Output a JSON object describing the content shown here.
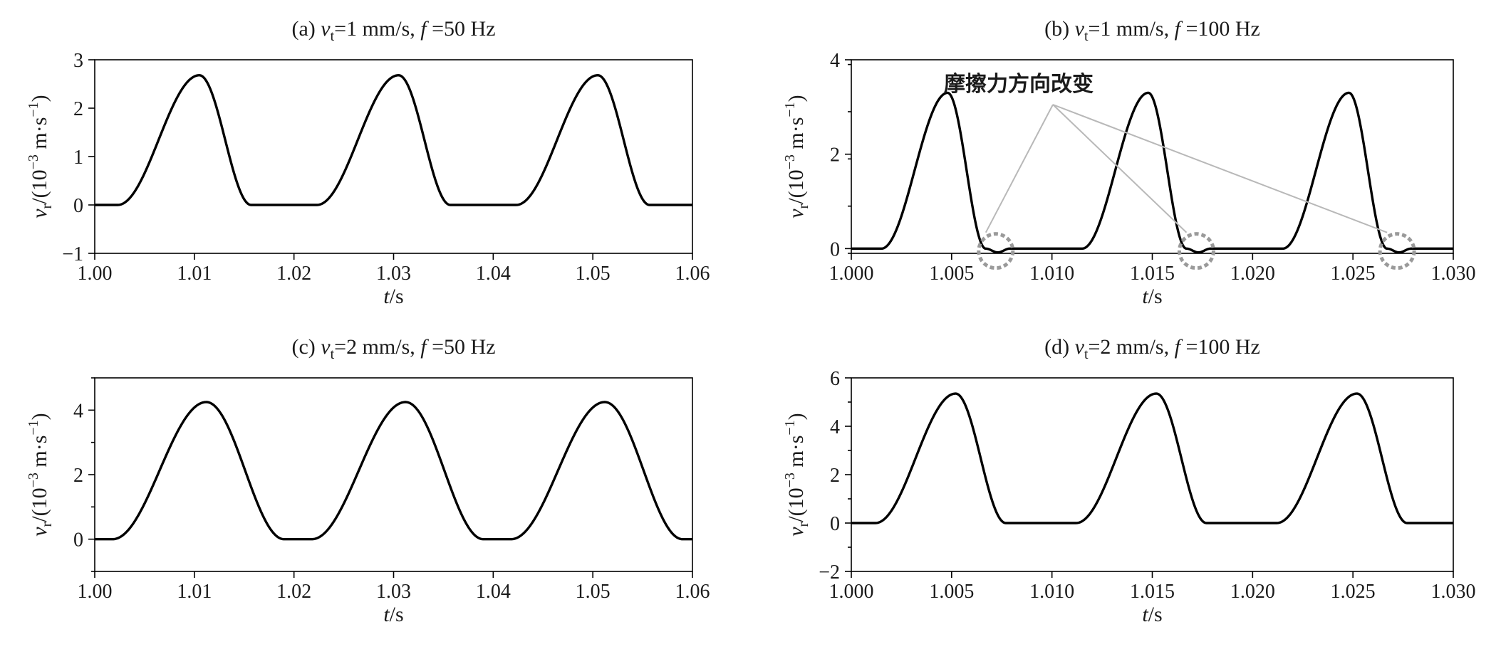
{
  "chart_data": [
    {
      "id": "a",
      "type": "line",
      "title": {
        "prefix": "(a) ",
        "var": "v",
        "sub": "t",
        "mid": "=1 mm/s, ",
        "fvar": "f",
        "suffix": " =50 Hz"
      },
      "xlabel": {
        "var": "t",
        "unit": "/s"
      },
      "ylabel": {
        "var": "v",
        "sub": "r",
        "unit_pre": "/(10",
        "exp": "−3",
        "unit_mid": " m·s",
        "exp2": "−1",
        "unit_post": ")"
      },
      "xlim": [
        1.0,
        1.06
      ],
      "ylim": [
        -1,
        3
      ],
      "xticks": [
        1.0,
        1.01,
        1.02,
        1.03,
        1.04,
        1.05,
        1.06
      ],
      "xtick_labels": [
        "1.00",
        "1.01",
        "1.02",
        "1.03",
        "1.04",
        "1.05",
        "1.06"
      ],
      "yticks": [
        -1,
        0,
        1,
        2,
        3
      ],
      "ytick_labels": [
        "−1",
        "0",
        "1",
        "2",
        "3"
      ],
      "grid": false,
      "series": [
        {
          "period": 0.02,
          "segments": [
            [
              1.0,
              0.0
            ],
            [
              1.0023,
              0.0
            ],
            [
              1.0105,
              2.68
            ],
            [
              1.0157,
              0.0
            ],
            [
              1.02,
              0.0
            ]
          ]
        }
      ]
    },
    {
      "id": "b",
      "type": "line",
      "title": {
        "prefix": "(b) ",
        "var": "v",
        "sub": "t",
        "mid": "=1 mm/s, ",
        "fvar": "f",
        "suffix": " =100 Hz"
      },
      "xlabel": {
        "var": "t",
        "unit": "/s"
      },
      "ylabel": {
        "var": "v",
        "sub": "r",
        "unit_pre": "/(10",
        "exp": "−3",
        "unit_mid": " m·s",
        "exp2": "−1",
        "unit_post": ")"
      },
      "xlim": [
        1.0,
        1.03
      ],
      "ylim": [
        -0.1,
        4
      ],
      "xticks": [
        1.0,
        1.005,
        1.01,
        1.015,
        1.02,
        1.025,
        1.03
      ],
      "xtick_labels": [
        "1.000",
        "1.005",
        "1.010",
        "1.015",
        "1.020",
        "1.025",
        "1.030"
      ],
      "yticks": [
        0,
        2,
        4
      ],
      "ytick_labels": [
        "0",
        "2",
        "4"
      ],
      "grid": false,
      "annotation": {
        "text": "摩擦力方向改变",
        "targets_x": [
          1.0072,
          1.0172,
          1.0272
        ],
        "target_y": -0.05
      },
      "series": [
        {
          "period": 0.01,
          "segments": [
            [
              1.0,
              0.0
            ],
            [
              1.0015,
              0.0
            ],
            [
              1.0048,
              3.3
            ],
            [
              1.0067,
              0.0
            ],
            [
              1.0073,
              -0.08
            ],
            [
              1.0079,
              0.0
            ],
            [
              1.01,
              0.0
            ]
          ]
        }
      ]
    },
    {
      "id": "c",
      "type": "line",
      "title": {
        "prefix": "(c) ",
        "var": "v",
        "sub": "t",
        "mid": "=2 mm/s, ",
        "fvar": "f",
        "suffix": " =50 Hz"
      },
      "xlabel": {
        "var": "t",
        "unit": "/s"
      },
      "ylabel": {
        "var": "v",
        "sub": "r",
        "unit_pre": "/(10",
        "exp": "−3",
        "unit_mid": " m·s",
        "exp2": "−1",
        "unit_post": ")"
      },
      "xlim": [
        1.0,
        1.06
      ],
      "ylim": [
        -1,
        5
      ],
      "xticks": [
        1.0,
        1.01,
        1.02,
        1.03,
        1.04,
        1.05,
        1.06
      ],
      "xtick_labels": [
        "1.00",
        "1.01",
        "1.02",
        "1.03",
        "1.04",
        "1.05",
        "1.06"
      ],
      "yticks": [
        0,
        2,
        4
      ],
      "ytick_labels": [
        "0",
        "2",
        "4"
      ],
      "grid": false,
      "series": [
        {
          "period": 0.02,
          "segments": [
            [
              1.0,
              0.0
            ],
            [
              1.0018,
              0.0
            ],
            [
              1.0112,
              4.25
            ],
            [
              1.019,
              0.0
            ],
            [
              1.02,
              0.0
            ]
          ]
        }
      ]
    },
    {
      "id": "d",
      "type": "line",
      "title": {
        "prefix": "(d) ",
        "var": "v",
        "sub": "t",
        "mid": "=2 mm/s, ",
        "fvar": "f",
        "suffix": " =100 Hz"
      },
      "xlabel": {
        "var": "t",
        "unit": "/s"
      },
      "ylabel": {
        "var": "v",
        "sub": "r",
        "unit_pre": "/(10",
        "exp": "−3",
        "unit_mid": " m·s",
        "exp2": "−1",
        "unit_post": ")"
      },
      "xlim": [
        1.0,
        1.03
      ],
      "ylim": [
        -2,
        6
      ],
      "xticks": [
        1.0,
        1.005,
        1.01,
        1.015,
        1.02,
        1.025,
        1.03
      ],
      "xtick_labels": [
        "1.000",
        "1.005",
        "1.010",
        "1.015",
        "1.020",
        "1.025",
        "1.030"
      ],
      "yticks": [
        -2,
        0,
        2,
        4,
        6
      ],
      "ytick_labels": [
        "−2",
        "0",
        "2",
        "4",
        "6"
      ],
      "grid": false,
      "series": [
        {
          "period": 0.01,
          "segments": [
            [
              1.0,
              0.0
            ],
            [
              1.0012,
              0.0
            ],
            [
              1.0052,
              5.35
            ],
            [
              1.0077,
              0.0
            ],
            [
              1.01,
              0.0
            ]
          ]
        }
      ]
    }
  ]
}
